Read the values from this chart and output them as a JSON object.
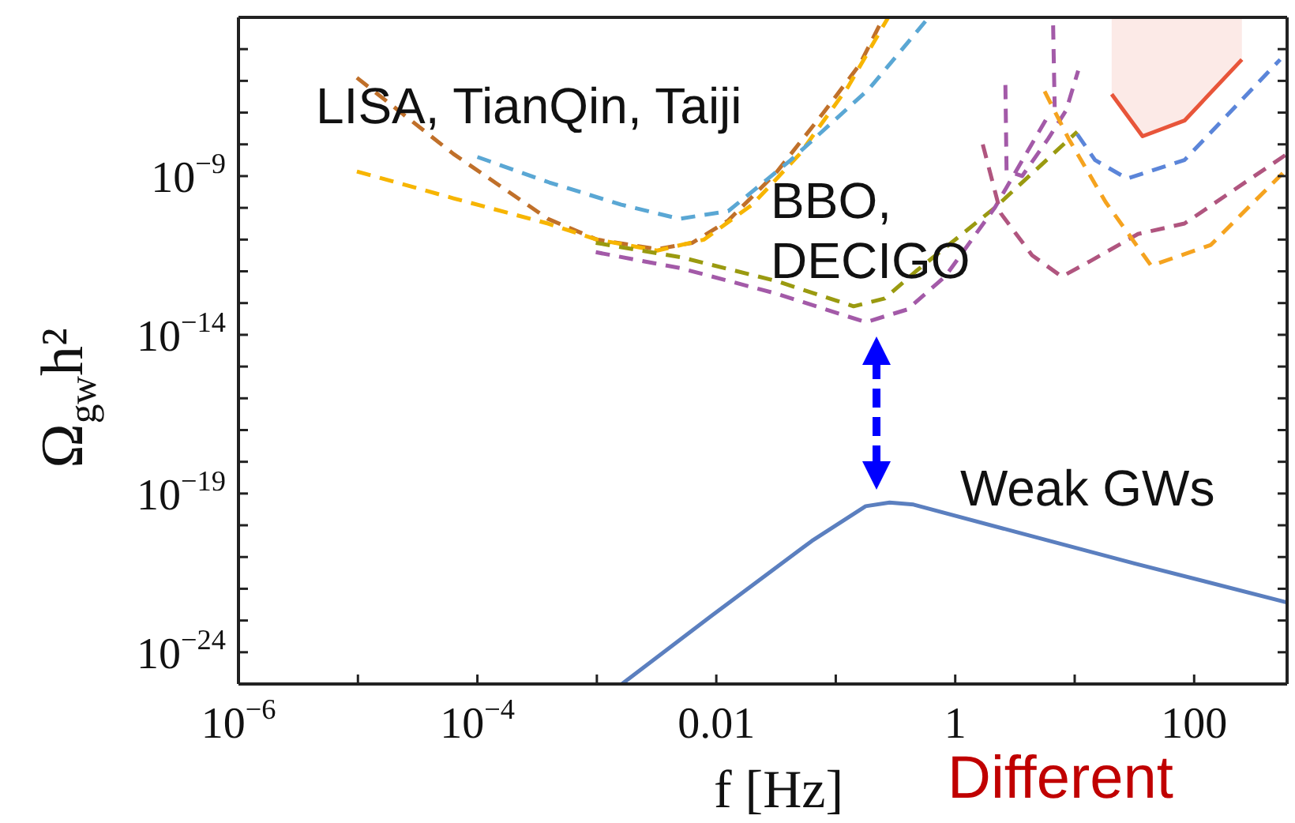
{
  "chart_data": {
    "type": "line",
    "xlabel": "f [Hz]",
    "ylabel": "Ω$_{gw}$h²",
    "log": "xy",
    "line_style": "dashed",
    "xlim": [
      1e-06,
      600
    ],
    "ylim": [
      1e-25,
      0.0001
    ],
    "xticks": [
      {
        "value": 1e-06,
        "label": "10$^{−6}$"
      },
      {
        "value": 1e-05,
        "label": null
      },
      {
        "value": 0.0001,
        "label": "10$^{−4}$"
      },
      {
        "value": 0.001,
        "label": null
      },
      0.01,
      {
        "value": 0.1,
        "label": null
      },
      1,
      {
        "value": 10,
        "label": null
      },
      100
    ],
    "yticks": [
      {
        "value": 1e-25,
        "label": null
      },
      {
        "value": 1e-24,
        "label": "10$^{−24}$"
      },
      {
        "value": 1e-23,
        "label": null
      },
      {
        "value": 1e-22,
        "label": null
      },
      {
        "value": 1e-21,
        "label": null
      },
      {
        "value": 1e-20,
        "label": null
      },
      {
        "value": 1e-19,
        "label": "10$^{−19}$"
      },
      {
        "value": 1e-18,
        "label": null
      },
      {
        "value": 1e-17,
        "label": null
      },
      {
        "value": 1e-16,
        "label": null
      },
      {
        "value": 1e-15,
        "label": null
      },
      {
        "value": 1e-14,
        "label": "10$^{−14}$"
      },
      {
        "value": 1e-13,
        "label": null
      },
      {
        "value": 1e-12,
        "label": null
      },
      {
        "value": 1e-11,
        "label": null
      },
      {
        "value": 1e-10,
        "label": null
      },
      {
        "value": 1e-09,
        "label": "10$^{−9}$"
      },
      {
        "value": 1e-08,
        "label": null
      },
      {
        "value": 1e-07,
        "label": null
      },
      {
        "value": 1e-06,
        "label": null
      },
      {
        "value": 1e-05,
        "label": null
      }
    ],
    "series": [
      {
        "color": "#5b7fbf",
        "line_style": "solid",
        "x": [
          0.00162,
          0.0091,
          0.063,
          0.178,
          0.282,
          0.447,
          3.16,
          31.6,
          600
        ],
        "values": [
          1e-25,
          1.4e-23,
          3.2e-21,
          4e-20,
          5.2e-20,
          4.5e-20,
          6.3e-21,
          6.3e-22,
          3.7e-23
        ]
      },
      {
        "color": "#c0702a",
        "x": [
          9.8e-06,
          6.3e-05,
          0.00039,
          0.001,
          0.0032,
          0.0063,
          0.0126,
          0.0316,
          0.079,
          0.158,
          0.251
        ],
        "values": [
          1.26e-06,
          5e-09,
          4.5e-11,
          1e-11,
          5e-12,
          7.9e-12,
          4e-11,
          1.26e-09,
          1e-07,
          3.2e-06,
          0.0001
        ]
      },
      {
        "color": "#f7b500",
        "x": [
          9.8e-06,
          6.3e-05,
          0.00039,
          0.001,
          0.0032,
          0.0079,
          0.02,
          0.05,
          0.126,
          0.275
        ],
        "values": [
          1.4e-09,
          2e-10,
          3.2e-11,
          1e-11,
          4.5e-12,
          1e-11,
          1.26e-10,
          5e-09,
          6.3e-07,
          0.0001
        ]
      },
      {
        "color": "#5aa7d4",
        "x": [
          0.0001,
          0.0004,
          0.0016,
          0.0049,
          0.0126,
          0.042,
          0.19,
          0.6
        ],
        "values": [
          4e-09,
          6.3e-10,
          1.26e-10,
          4.5e-11,
          7.9e-11,
          3.2e-09,
          5.6e-07,
          0.0001
        ]
      },
      {
        "color": "#9a9a10",
        "x": [
          0.00098,
          0.005,
          0.0316,
          0.141,
          0.257,
          0.468,
          2.14,
          10.5
        ],
        "values": [
          7.9e-12,
          2.8e-12,
          5e-13,
          7.9e-14,
          1.4e-13,
          1e-12,
          1e-10,
          2.5e-08
        ]
      },
      {
        "color": "#a35aa8",
        "x": [
          0.00098,
          0.005,
          0.0316,
          0.178,
          0.398,
          0.83,
          2.14,
          6.0
        ],
        "values": [
          4e-12,
          1.26e-12,
          2e-13,
          2.5e-14,
          6.3e-14,
          7.1e-13,
          1e-10,
          7.9e-08
        ]
      },
      {
        "color": "#a35aa8",
        "x": [
          2.63,
          2.69,
          3.63,
          6.0,
          8.5,
          10.7
        ],
        "values": [
          7.4e-07,
          1.5e-09,
          1e-09,
          1.5e-08,
          1.2e-07,
          2.1e-06
        ]
      },
      {
        "color": "#a35aa8",
        "x": [
          6.6,
          6.8
        ],
        "values": [
          5.6e-05,
          1.5e-07
        ]
      },
      {
        "color": "#b0557f",
        "x": [
          1.7,
          2.4,
          4.4,
          7.8,
          13.5,
          33.9,
          83,
          600
        ],
        "values": [
          1e-08,
          6.8e-11,
          3.2e-12,
          6.8e-13,
          2.1e-12,
          1.5e-11,
          3.2e-11,
          5e-09
        ]
      },
      {
        "color": "#f5a31f",
        "x": [
          5.6,
          8.9,
          18.2,
          43.7,
          138,
          600
        ],
        "values": [
          4.7e-07,
          1.5e-08,
          1.5e-10,
          1.5e-12,
          6.8e-12,
          1.7e-09
        ]
      },
      {
        "color": "#5b85d9",
        "x": [
          10.5,
          14.8,
          27.5,
          83,
          525
        ],
        "values": [
          2.1e-08,
          3.2e-09,
          8.3e-10,
          3.2e-09,
          4.7e-06
        ]
      },
      {
        "color": "#e8553a",
        "line_style": "solid",
        "x": [
          20.4,
          37,
          83,
          251
        ],
        "values": [
          3.8e-07,
          1.8e-08,
          5.6e-08,
          4.7e-06
        ],
        "lower": [
          3.8e-07,
          1.8e-08,
          5.6e-08,
          4.7e-06
        ],
        "upper": [
          9e-05,
          9e-05,
          9e-05,
          9e-05
        ]
      }
    ],
    "annotations": [
      "LISA, TianQin, Taiji",
      "BBO,\nDECIGO",
      "Weak GWs",
      "Different"
    ]
  }
}
